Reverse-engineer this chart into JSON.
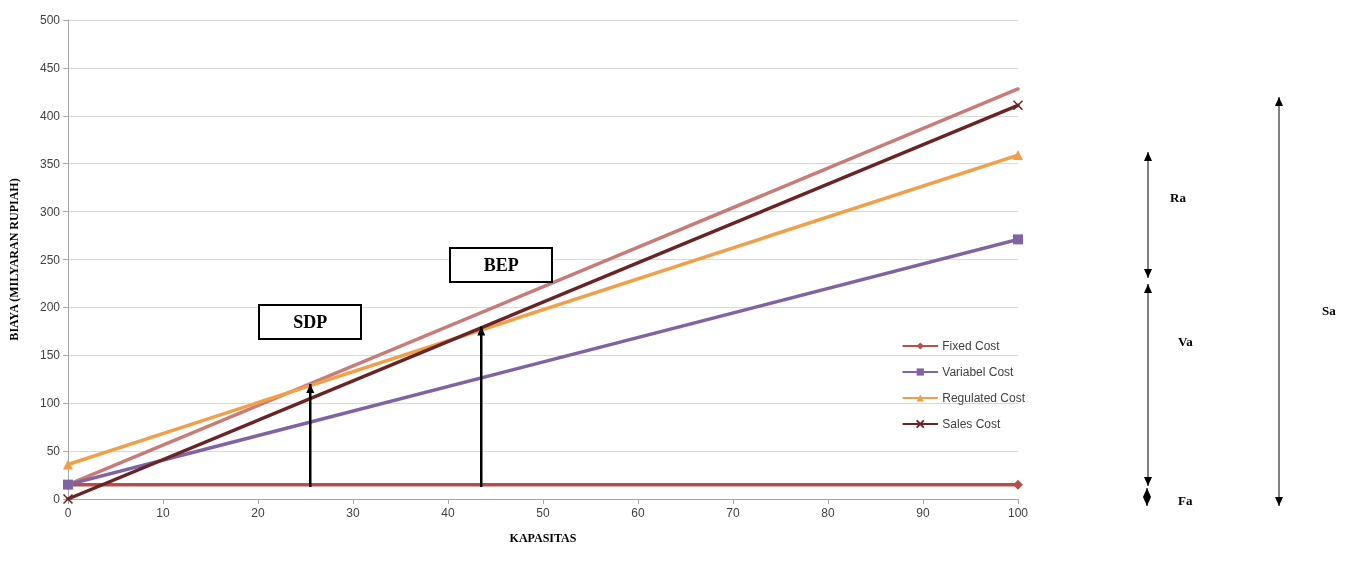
{
  "chart_data": {
    "type": "line",
    "xlabel": "KAPASITAS",
    "ylabel": "BIAYA (MILYARAN RUPIAH)",
    "xlim": [
      0,
      100
    ],
    "xticks": [
      0,
      10,
      20,
      30,
      40,
      50,
      60,
      70,
      80,
      90,
      100
    ],
    "ylim": [
      0,
      500
    ],
    "yticks": [
      0,
      50,
      100,
      150,
      200,
      250,
      300,
      350,
      400,
      450,
      500
    ],
    "grid": "y",
    "legend": "right",
    "line_style": "solid",
    "x": [
      0,
      100
    ],
    "series": [
      {
        "values": [
          15,
          428
        ],
        "color": "#c87c78",
        "marker": "none"
      },
      {
        "name": "Fixed Cost",
        "values": [
          15,
          15
        ],
        "color": "#b3504d",
        "marker": "diamond"
      },
      {
        "name": "Variabel Cost",
        "values": [
          15,
          271
        ],
        "color": "#7f63a3",
        "marker": "square"
      },
      {
        "name": "Regulated Cost",
        "values": [
          36,
          359
        ],
        "color": "#f0a04b",
        "marker": "triangle"
      },
      {
        "name": "Sales Cost",
        "values": [
          0,
          411
        ],
        "color": "#6b2426",
        "marker": "cross"
      }
    ],
    "annotations": [
      {
        "text": "SDP",
        "x": 25.5,
        "y": 120
      },
      {
        "text": "BEP",
        "x": 43.5,
        "y": 180
      },
      "Ra",
      "Va",
      "Fa",
      "Sa"
    ]
  }
}
